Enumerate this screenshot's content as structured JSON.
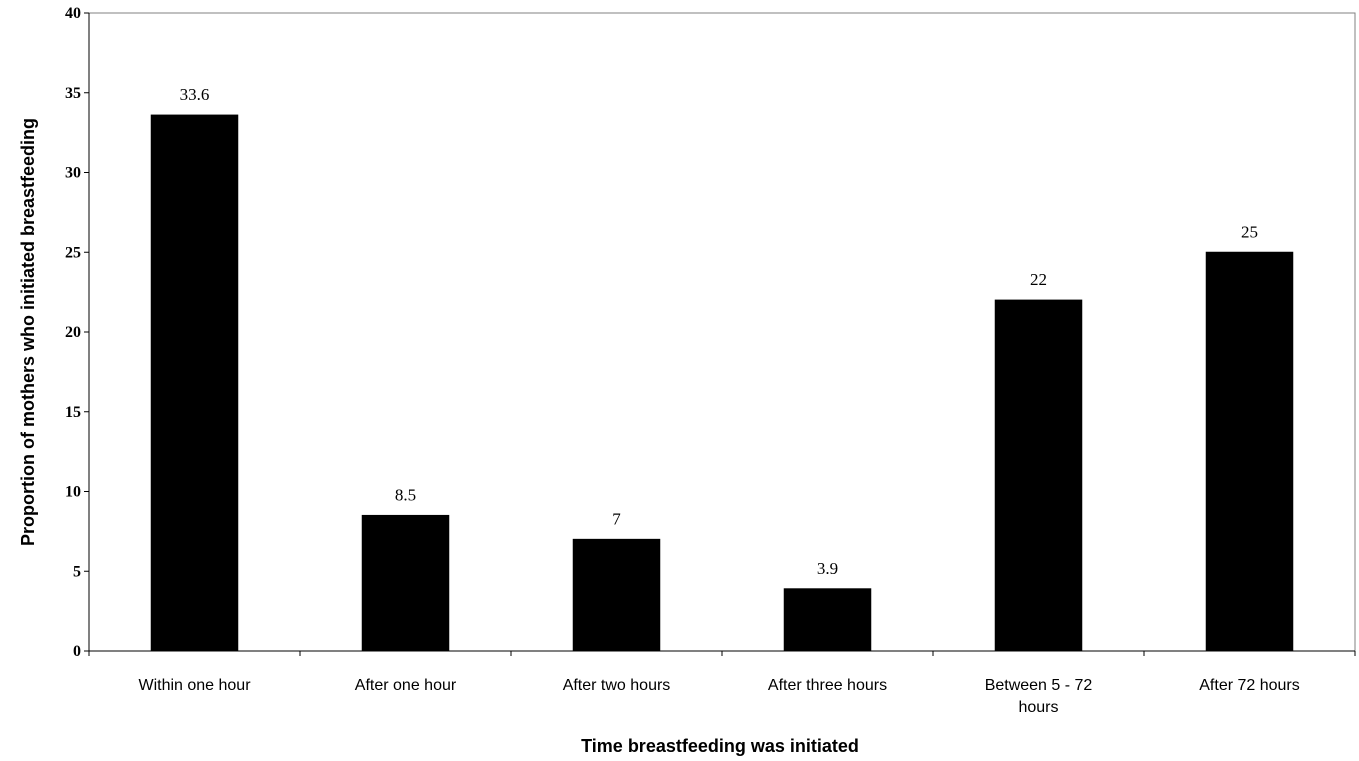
{
  "chart_data": {
    "type": "bar",
    "title": "",
    "xlabel": "Time breastfeeding was initiated",
    "ylabel": "Proportion of mothers who initiated breastfeeding",
    "categories": [
      [
        "Within one hour"
      ],
      [
        "After one hour"
      ],
      [
        "After two hours"
      ],
      [
        "After three hours"
      ],
      [
        "Between 5 - 72",
        "hours"
      ],
      [
        "After 72 hours"
      ]
    ],
    "values": [
      33.6,
      8.5,
      7,
      3.9,
      22,
      25
    ],
    "value_labels": [
      "33.6",
      "8.5",
      "7",
      "3.9",
      "22",
      "25"
    ],
    "ylim": [
      0,
      40
    ],
    "yticks": [
      "0",
      "5",
      "10",
      "15",
      "20",
      "25",
      "30",
      "35",
      "40"
    ],
    "grid": false,
    "legend": "none",
    "bar_color": "#000000"
  }
}
